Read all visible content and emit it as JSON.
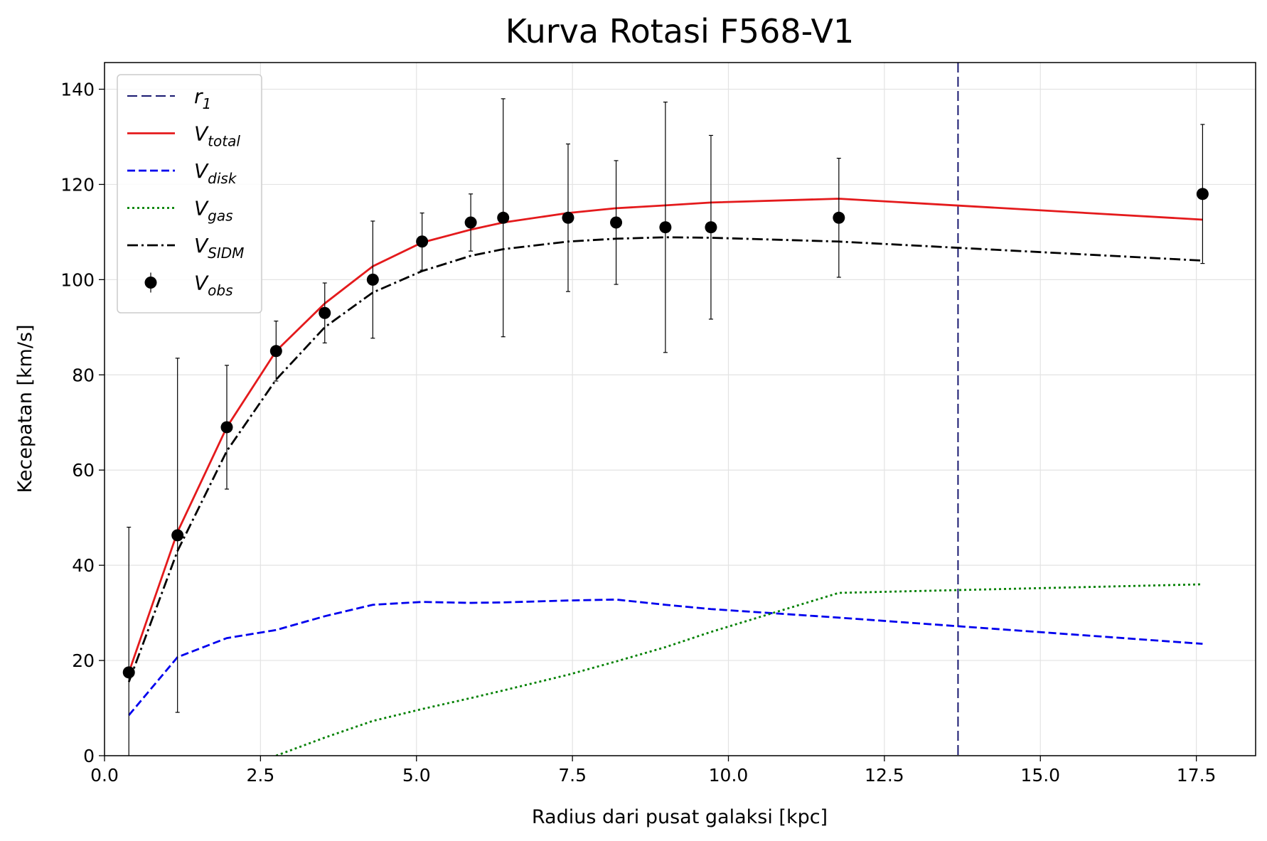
{
  "chart_data": {
    "type": "line",
    "title": "Kurva Rotasi F568-V1",
    "xlabel": "Radius dari pusat galaksi [kpc]",
    "ylabel": "Kecepatan [km/s]",
    "x": [
      0.39,
      1.17,
      1.96,
      2.75,
      3.53,
      4.3,
      5.09,
      5.87,
      6.39,
      7.43,
      8.2,
      8.99,
      9.72,
      11.77,
      17.6
    ],
    "xlim": [
      0,
      18.45
    ],
    "ylim": [
      0,
      145.6
    ],
    "xticks": [
      0.0,
      2.5,
      5.0,
      7.5,
      10.0,
      12.5,
      15.0,
      17.5
    ],
    "yticks": [
      0,
      20,
      40,
      60,
      80,
      100,
      120,
      140
    ],
    "grid": true,
    "legend_position": "upper left",
    "reference_lines": [
      {
        "name": "r",
        "subscript": "1",
        "x": 13.68,
        "color": "#191970",
        "dash": "dashed"
      }
    ],
    "series": [
      {
        "name": "V",
        "subscript": "total",
        "color": "#e41a1c",
        "style": "solid",
        "values": [
          17.5,
          47,
          69,
          85,
          95,
          102.8,
          107.8,
          110.5,
          112,
          114,
          115,
          115.6,
          116.2,
          117,
          112.6
        ]
      },
      {
        "name": "V",
        "subscript": "disk",
        "color": "#0000ee",
        "style": "dashed",
        "values": [
          8.5,
          20.7,
          24.7,
          26.4,
          29.3,
          31.7,
          32.3,
          32.1,
          32.2,
          32.6,
          32.8,
          31.7,
          30.8,
          29,
          23.5
        ]
      },
      {
        "name": "V",
        "subscript": "gas",
        "color": "#008000",
        "style": "dotted",
        "values": [
          null,
          null,
          null,
          0,
          3.8,
          7.3,
          9.8,
          12.1,
          13.7,
          17,
          19.8,
          22.8,
          26,
          34.2,
          36
        ]
      },
      {
        "name": "V",
        "subscript": "SIDM",
        "color": "#000000",
        "style": "dashdot",
        "values": [
          15.5,
          43,
          64,
          79,
          90,
          97.3,
          101.8,
          105,
          106.4,
          108,
          108.6,
          108.9,
          108.8,
          108,
          104
        ]
      },
      {
        "name": "V",
        "subscript": "obs",
        "color": "#000000",
        "style": "errorbar",
        "values": [
          17.5,
          46.3,
          69,
          85,
          93,
          100,
          108,
          112,
          113,
          113,
          112,
          111,
          111,
          113,
          118
        ],
        "errors": [
          30.5,
          37.2,
          13,
          6.3,
          6.3,
          12.3,
          6,
          6,
          25,
          15.5,
          13,
          26.3,
          19.3,
          12.5,
          14.6
        ]
      }
    ]
  }
}
